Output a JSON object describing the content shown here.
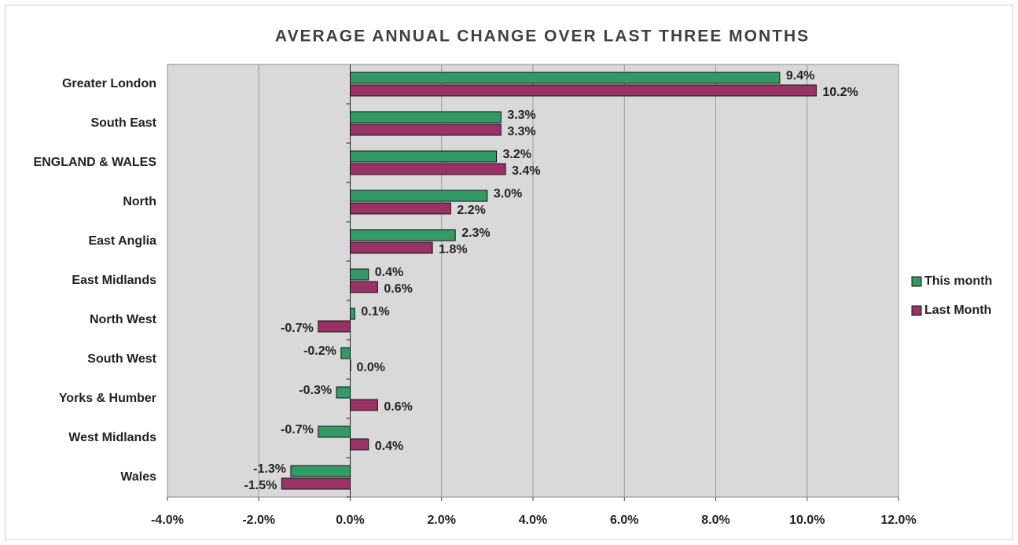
{
  "chart_data": {
    "type": "hbar",
    "title": "AVERAGE ANNUAL CHANGE OVER LAST THREE MONTHS",
    "categories": [
      "Greater London",
      "South East",
      "ENGLAND & WALES",
      "North",
      "East Anglia",
      "East Midlands",
      "North West",
      "South West",
      "Yorks & Humber",
      "West Midlands",
      "Wales"
    ],
    "series": [
      {
        "name": "This month",
        "color": "#339966",
        "values": [
          9.4,
          3.3,
          3.2,
          3.0,
          2.3,
          0.4,
          0.1,
          -0.2,
          -0.3,
          -0.7,
          -1.3
        ],
        "value_labels": [
          "9.4%",
          "3.3%",
          "3.2%",
          "3.0%",
          "2.3%",
          "0.4%",
          "0.1%",
          "-0.2%",
          "-0.3%",
          "-0.7%",
          "-1.3%"
        ]
      },
      {
        "name": "Last Month",
        "color": "#993366",
        "values": [
          10.2,
          3.3,
          3.4,
          2.2,
          1.8,
          0.6,
          -0.7,
          0.0,
          0.6,
          0.4,
          -1.5
        ],
        "value_labels": [
          "10.2%",
          "3.3%",
          "3.4%",
          "2.2%",
          "1.8%",
          "0.6%",
          "-0.7%",
          "0.0%",
          "0.6%",
          "0.4%",
          "-1.5%"
        ]
      }
    ],
    "xlim": [
      -4,
      12
    ],
    "xticks": [
      {
        "value": -4,
        "label": "-4.0%"
      },
      {
        "value": -2,
        "label": "-2.0%"
      },
      {
        "value": 0,
        "label": "0.0%"
      },
      {
        "value": 2,
        "label": "2.0%"
      },
      {
        "value": 4,
        "label": "4.0%"
      },
      {
        "value": 6,
        "label": "6.0%"
      },
      {
        "value": 8,
        "label": "8.0%"
      },
      {
        "value": 10,
        "label": "10.0%"
      },
      {
        "value": 12,
        "label": "12.0%"
      }
    ],
    "grid": true,
    "legend": "right",
    "plot_background": "#d9d9d9"
  }
}
